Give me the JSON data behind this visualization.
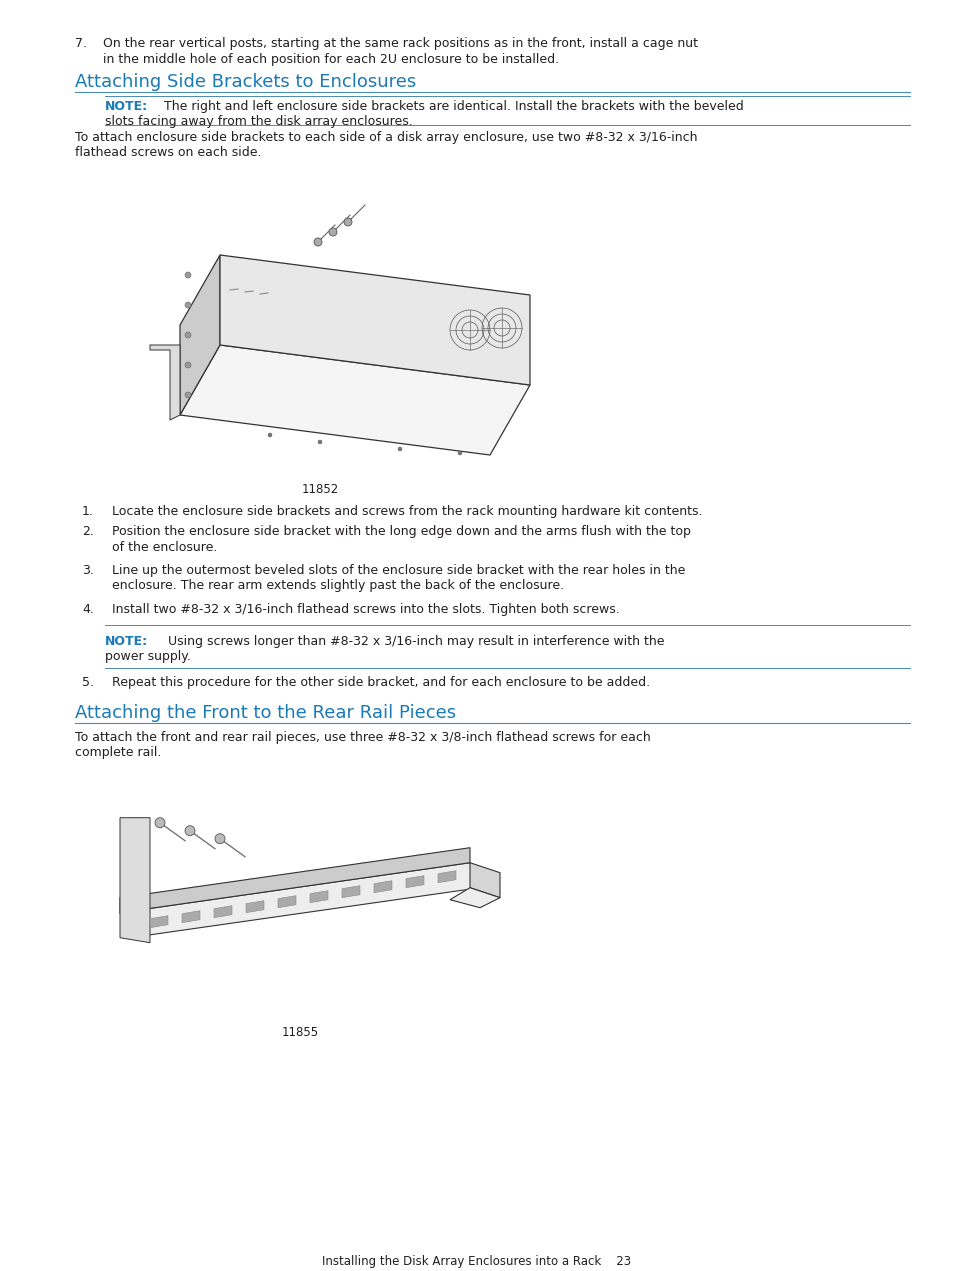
{
  "bg_color": "#ffffff",
  "text_color": "#231f20",
  "title_color": "#1a7ab5",
  "note_color": "#1a7ab5",
  "divider_color": "#4a8ab5",
  "item7_line1": "7.    On the rear vertical posts, starting at the same rack positions as in the front, install a cage nut",
  "item7_line2": "       in the middle hole of each position for each 2U enclosure to be installed.",
  "section1_title": "Attaching Side Brackets to Enclosures",
  "note1_bold": "NOTE:",
  "note1_rest": "   The right and left enclosure side brackets are identical. Install the brackets with the beveled",
  "note1_line2": "slots facing away from the disk array enclosures.",
  "para1_line1": "To attach enclosure side brackets to each side of a disk array enclosure, use two #8-32 x 3/16-inch",
  "para1_line2": "flathead screws on each side.",
  "fig1_caption": "11852",
  "list1": "Locate the enclosure side brackets and screws from the rack mounting hardware kit contents.",
  "list2a": "Position the enclosure side bracket with the long edge down and the arms flush with the top",
  "list2b": "of the enclosure.",
  "list3a": "Line up the outermost beveled slots of the enclosure side bracket with the rear holes in the",
  "list3b": "enclosure. The rear arm extends slightly past the back of the enclosure.",
  "list4": "Install two #8-32 x 3/16-inch flathead screws into the slots. Tighten both screws.",
  "note2_bold": "NOTE:",
  "note2_rest": "    Using screws longer than #8-32 x 3/16-inch may result in interference with the",
  "note2_line2": "power supply.",
  "list5": "Repeat this procedure for the other side bracket, and for each enclosure to be added.",
  "section2_title": "Attaching the Front to the Rear Rail Pieces",
  "para2_line1": "To attach the front and rear rail pieces, use three #8-32 x 3/8-inch flathead screws for each",
  "para2_line2": "complete rail.",
  "fig2_caption": "11855",
  "footer": "Installing the Disk Array Enclosures into a Rack    23"
}
